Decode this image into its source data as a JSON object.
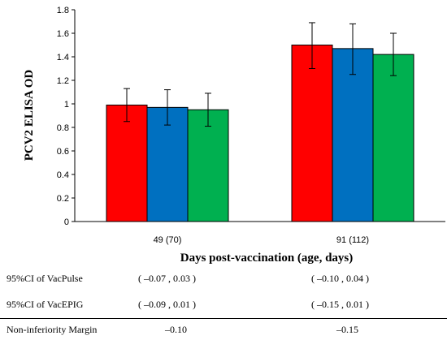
{
  "chart_data": {
    "type": "bar",
    "ylabel": "PCV2 ELISA OD",
    "xlabel": "Days post-vaccination (age, days)",
    "categories": [
      "49 (70)",
      "91 (112)"
    ],
    "ylim": [
      0,
      1.8
    ],
    "yticks": [
      "0",
      "0.2",
      "0.4",
      "0.6",
      "0.8",
      "1",
      "1.2",
      "1.4",
      "1.6",
      "1.8"
    ],
    "grid": false,
    "series": [
      {
        "color": "#ff0000",
        "values": [
          0.99,
          1.5
        ],
        "err_low": [
          0.85,
          1.3
        ],
        "err_high": [
          1.13,
          1.69
        ]
      },
      {
        "color": "#0070c0",
        "values": [
          0.97,
          1.47
        ],
        "err_low": [
          0.82,
          1.25
        ],
        "err_high": [
          1.12,
          1.68
        ]
      },
      {
        "color": "#00b050",
        "values": [
          0.95,
          1.42
        ],
        "err_low": [
          0.81,
          1.24
        ],
        "err_high": [
          1.09,
          1.6
        ]
      }
    ]
  },
  "table": {
    "rows": [
      {
        "label": "95%CI of VacPulse",
        "values": [
          "( –0.07 , 0.03 )",
          "( –0.10 , 0.04 )"
        ]
      },
      {
        "label": "95%CI of VacEPIG",
        "values": [
          "( –0.09 , 0.01 )",
          "( –0.15 , 0.01 )"
        ]
      }
    ],
    "margin": {
      "label": "Non-inferiority Margin",
      "values": [
        "–0.10",
        "–0.15"
      ]
    }
  }
}
